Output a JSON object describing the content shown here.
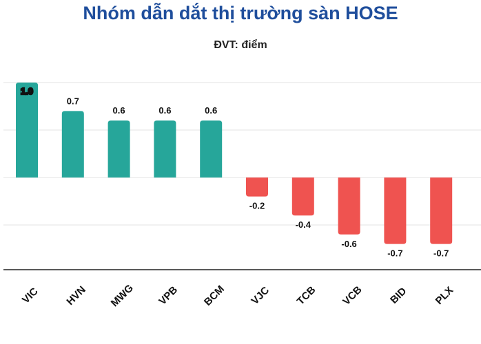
{
  "title": "Nhóm dẫn dắt thị trường sàn HOSE",
  "subtitle": "ĐVT: điểm",
  "chart_data": {
    "type": "bar",
    "title": "Nhóm dẫn dắt thị trường sàn HOSE",
    "subtitle": "ĐVT: điểm",
    "categories": [
      "VIC",
      "HVN",
      "MWG",
      "VPB",
      "BCM",
      "VJC",
      "TCB",
      "VCB",
      "BID",
      "PLX"
    ],
    "values": [
      1.0,
      0.7,
      0.6,
      0.6,
      0.6,
      -0.2,
      -0.4,
      -0.6,
      -0.7,
      -0.7
    ],
    "value_labels": [
      "1.0",
      "0.7",
      "0.6",
      "0.6",
      "0.6",
      "-0.2",
      "-0.4",
      "-0.6",
      "-0.7",
      "-0.7"
    ],
    "ylim": [
      -1.0,
      1.0
    ],
    "grid": true,
    "xlabel": "",
    "ylabel": "",
    "colors": {
      "positive": "#26a69a",
      "negative": "#ef5350"
    }
  }
}
